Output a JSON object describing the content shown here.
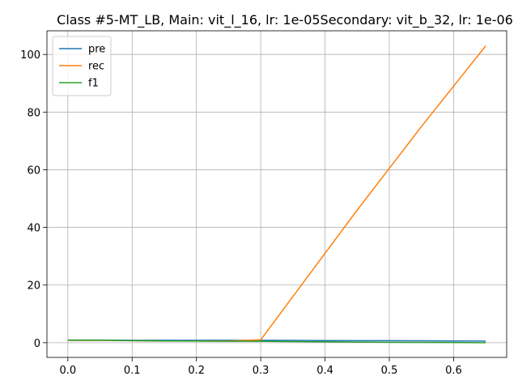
{
  "chart_data": {
    "type": "line",
    "title": "Class #5-MT_LB, Main: vit_l_16, lr: 1e-05Secondary: vit_b_32, lr: 1e-06",
    "xlabel": "",
    "ylabel": "",
    "xlim": [
      -0.0325,
      0.6825
    ],
    "ylim": [
      -5.1,
      108.2
    ],
    "x_ticks": [
      "0.0",
      "0.1",
      "0.2",
      "0.3",
      "0.4",
      "0.5",
      "0.6"
    ],
    "y_ticks": [
      "0",
      "20",
      "40",
      "60",
      "80",
      "100"
    ],
    "x_tick_values": [
      0,
      0.1,
      0.2,
      0.3,
      0.4,
      0.5,
      0.6
    ],
    "y_tick_values": [
      0,
      20,
      40,
      60,
      80,
      100
    ],
    "grid": true,
    "legend_position": "top-left",
    "series": [
      {
        "name": "pre",
        "color": "#1f77b4",
        "x": [
          0.0,
          0.05,
          0.1,
          0.15,
          0.2,
          0.25,
          0.3,
          0.35,
          0.4,
          0.45,
          0.5,
          0.55,
          0.6,
          0.65
        ],
        "y": [
          0.9,
          0.9,
          0.85,
          0.85,
          0.85,
          0.85,
          0.85,
          0.8,
          0.75,
          0.7,
          0.7,
          0.65,
          0.6,
          0.55
        ]
      },
      {
        "name": "rec",
        "color": "#ff7f0e",
        "x": [
          0.0,
          0.05,
          0.1,
          0.15,
          0.2,
          0.25,
          0.3,
          0.35,
          0.4,
          0.45,
          0.5,
          0.55,
          0.6,
          0.65
        ],
        "y": [
          0.8,
          0.8,
          0.7,
          0.6,
          0.6,
          0.6,
          1.0,
          16.0,
          31.0,
          46.0,
          60.5,
          75.0,
          89.0,
          103.0
        ]
      },
      {
        "name": "f1",
        "color": "#2ca02c",
        "x": [
          0.0,
          0.05,
          0.1,
          0.15,
          0.2,
          0.25,
          0.3,
          0.35,
          0.4,
          0.45,
          0.5,
          0.55,
          0.6,
          0.65
        ],
        "y": [
          0.85,
          0.85,
          0.7,
          0.6,
          0.55,
          0.5,
          0.5,
          0.4,
          0.3,
          0.2,
          0.15,
          0.1,
          0.05,
          0.0
        ]
      }
    ]
  }
}
